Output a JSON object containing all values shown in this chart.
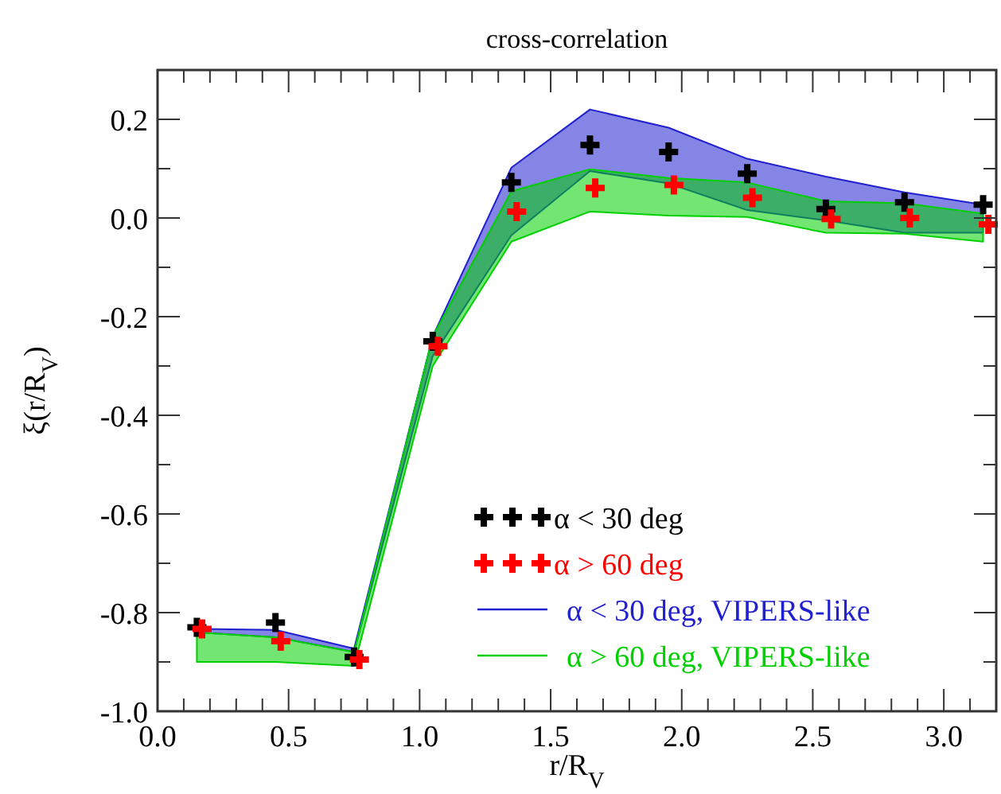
{
  "chart_data": {
    "type": "scatter",
    "title": "cross-correlation",
    "xlabel": "r/R$_{V}$",
    "ylabel": "ξ(r/R$_{V}$)",
    "xlim": [
      0,
      3.2
    ],
    "ylim": [
      -1,
      0.3
    ],
    "xticks": [
      {
        "value": 0,
        "label": "0.0"
      },
      {
        "value": 0.1,
        "label": null
      },
      {
        "value": 0.2,
        "label": null
      },
      {
        "value": 0.3,
        "label": null
      },
      {
        "value": 0.4,
        "label": null
      },
      {
        "value": 0.5,
        "label": "0.5"
      },
      {
        "value": 0.6,
        "label": null
      },
      {
        "value": 0.7,
        "label": null
      },
      {
        "value": 0.8,
        "label": null
      },
      {
        "value": 0.9,
        "label": null
      },
      {
        "value": 1,
        "label": "1.0"
      },
      {
        "value": 1.1,
        "label": null
      },
      {
        "value": 1.2,
        "label": null
      },
      {
        "value": 1.3,
        "label": null
      },
      {
        "value": 1.4,
        "label": null
      },
      {
        "value": 1.5,
        "label": "1.5"
      },
      {
        "value": 1.6,
        "label": null
      },
      {
        "value": 1.7,
        "label": null
      },
      {
        "value": 1.8,
        "label": null
      },
      {
        "value": 1.9,
        "label": null
      },
      {
        "value": 2,
        "label": "2.0"
      },
      {
        "value": 2.1,
        "label": null
      },
      {
        "value": 2.2,
        "label": null
      },
      {
        "value": 2.3,
        "label": null
      },
      {
        "value": 2.4,
        "label": null
      },
      {
        "value": 2.5,
        "label": "2.5"
      },
      {
        "value": 2.6,
        "label": null
      },
      {
        "value": 2.7,
        "label": null
      },
      {
        "value": 2.8,
        "label": null
      },
      {
        "value": 2.9,
        "label": null
      },
      {
        "value": 3,
        "label": "3.0"
      },
      {
        "value": 3.1,
        "label": null
      }
    ],
    "yticks": [
      {
        "value": -1,
        "label": "-1.0"
      },
      {
        "value": -0.9,
        "label": null
      },
      {
        "value": -0.8,
        "label": "-0.8"
      },
      {
        "value": -0.7,
        "label": null
      },
      {
        "value": -0.6,
        "label": "-0.6"
      },
      {
        "value": -0.5,
        "label": null
      },
      {
        "value": -0.4,
        "label": "-0.4"
      },
      {
        "value": -0.3,
        "label": null
      },
      {
        "value": -0.2,
        "label": "-0.2"
      },
      {
        "value": -0.1,
        "label": null
      },
      {
        "value": 0,
        "label": "0.0"
      },
      {
        "value": 0.1,
        "label": null
      },
      {
        "value": 0.2,
        "label": "0.2"
      }
    ],
    "grid": false,
    "legend": "bottom right",
    "marker": "cross",
    "series": [
      {
        "type": "line",
        "name": "α < 30 deg, VIPERS-like",
        "color": "#2020d0",
        "x": [
          0.15,
          0.45,
          0.75,
          1.05,
          1.35,
          1.65,
          1.95,
          2.25,
          2.55,
          2.85,
          3.15
        ],
        "values": [
          null,
          null,
          null,
          null,
          null,
          null,
          null,
          null,
          null,
          null,
          null
        ],
        "upper": [
          -0.833,
          -0.835,
          -0.873,
          -0.24,
          0.102,
          0.22,
          0.183,
          0.12,
          0.084,
          0.052,
          0.027
        ],
        "lower": [
          -0.84,
          -0.85,
          -0.88,
          -0.28,
          -0.035,
          0.095,
          0.07,
          0.016,
          -0.005,
          -0.03,
          -0.03
        ]
      },
      {
        "type": "line",
        "name": "α > 60 deg, VIPERS-like",
        "color": "#00d000",
        "x": [
          0.15,
          0.45,
          0.75,
          1.05,
          1.35,
          1.65,
          1.95,
          2.25,
          2.55,
          2.85,
          3.15
        ],
        "values": [
          null,
          null,
          null,
          null,
          null,
          null,
          null,
          null,
          null,
          null,
          null
        ],
        "upper": [
          -0.84,
          -0.85,
          -0.88,
          -0.24,
          0.054,
          0.099,
          0.081,
          0.072,
          0.034,
          0.03,
          0.009
        ],
        "lower": [
          -0.9,
          -0.9,
          -0.908,
          -0.3,
          -0.048,
          0.013,
          0.005,
          0.002,
          -0.03,
          -0.032,
          -0.048
        ]
      },
      {
        "name": "α < 30 deg",
        "color": "#000000",
        "x": [
          0.15,
          0.45,
          0.75,
          1.05,
          1.35,
          1.65,
          1.95,
          2.25,
          2.55,
          2.85,
          3.15
        ],
        "values": [
          -0.83,
          -0.82,
          -0.89,
          -0.25,
          0.072,
          0.148,
          0.134,
          0.09,
          0.018,
          0.032,
          0.027
        ]
      },
      {
        "name": "α > 60 deg",
        "color": "#ff0000",
        "x": [
          0.17,
          0.47,
          0.77,
          1.07,
          1.37,
          1.67,
          1.97,
          2.27,
          2.57,
          2.87,
          3.17
        ],
        "values": [
          -0.833,
          -0.858,
          -0.895,
          -0.26,
          0.013,
          0.061,
          0.067,
          0.041,
          -0.002,
          0,
          -0.013
        ]
      }
    ]
  }
}
